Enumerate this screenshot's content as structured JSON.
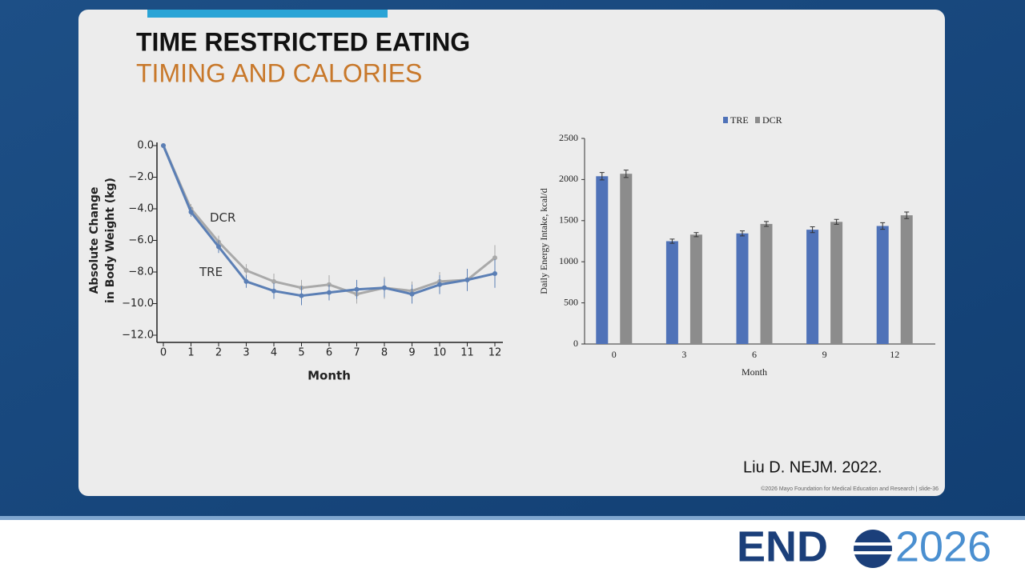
{
  "slide": {
    "title": "TIME RESTRICTED EATING",
    "subtitle": "TIMING AND CALORIES",
    "citation": "Liu D. NEJM. 2022.",
    "copyright": "©2026 Mayo Foundation for Medical Education and Research  |  slide-36",
    "logo_left": "END",
    "logo_right": "2026"
  },
  "chart_data": [
    {
      "type": "line",
      "x": [
        0,
        1,
        2,
        3,
        4,
        5,
        6,
        7,
        8,
        9,
        10,
        11,
        12
      ],
      "xlim": [
        0,
        12
      ],
      "xticks": [
        0,
        1,
        2,
        3,
        4,
        5,
        6,
        7,
        8,
        9,
        10,
        11,
        12
      ],
      "ylim": [
        -12,
        0
      ],
      "yticks": [
        {
          "value": 0,
          "label": "0.0"
        },
        {
          "value": -2,
          "label": "−2.0"
        },
        {
          "value": -4,
          "label": "−4.0"
        },
        {
          "value": -6,
          "label": "−6.0"
        },
        {
          "value": -8,
          "label": "−8.0"
        },
        {
          "value": -10,
          "label": "−10.0"
        },
        {
          "value": -12,
          "label": "−12.0"
        }
      ],
      "xlabel": "Month",
      "ylabel": [
        "Absolute Change",
        "in Body Weight (kg)"
      ],
      "series": [
        {
          "name": "DCR",
          "color": "#a9a9a9",
          "values": [
            0,
            -4.0,
            -6.1,
            -7.9,
            -8.6,
            -9.0,
            -8.8,
            -9.4,
            -9.0,
            -9.2,
            -8.6,
            -8.5,
            -7.1
          ],
          "errors": [
            0,
            0.3,
            0.4,
            0.4,
            0.5,
            0.5,
            0.6,
            0.6,
            0.7,
            0.6,
            0.6,
            0.7,
            0.8
          ]
        },
        {
          "name": "TRE",
          "color": "#5b7fb5",
          "values": [
            0,
            -4.2,
            -6.4,
            -8.6,
            -9.2,
            -9.5,
            -9.3,
            -9.1,
            -9.0,
            -9.4,
            -8.8,
            -8.5,
            -8.1
          ],
          "errors": [
            0,
            0.3,
            0.4,
            0.4,
            0.5,
            0.6,
            0.5,
            0.6,
            0.6,
            0.6,
            0.6,
            0.7,
            0.9
          ]
        }
      ]
    },
    {
      "type": "bar",
      "categories": [
        "0",
        "3",
        "6",
        "9",
        "12"
      ],
      "ylim": [
        0,
        2500
      ],
      "yticks": [
        0,
        500,
        1000,
        1500,
        2000,
        2500
      ],
      "xlabel": "Month",
      "ylabel": "Daily Energy Intake, kcal/d",
      "legend": "top",
      "series": [
        {
          "name": "TRE",
          "color": "#4f72b8",
          "values": [
            2040,
            1250,
            1345,
            1390,
            1435
          ],
          "errors": [
            45,
            25,
            30,
            35,
            40
          ]
        },
        {
          "name": "DCR",
          "color": "#8c8c8c",
          "values": [
            2070,
            1330,
            1460,
            1485,
            1565
          ],
          "errors": [
            45,
            25,
            30,
            30,
            40
          ]
        }
      ]
    }
  ]
}
